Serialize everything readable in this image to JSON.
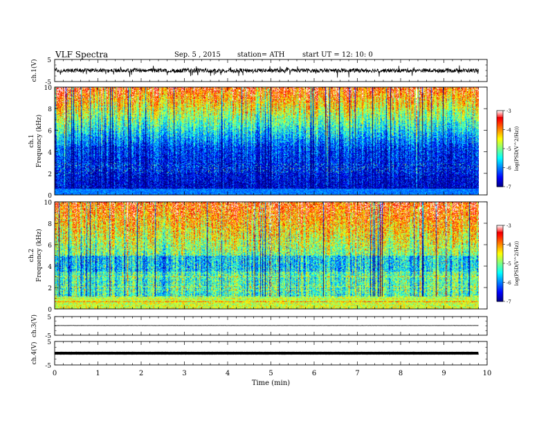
{
  "header": {
    "title": "VLF  Spectra",
    "date": "Sep. 5  , 2015",
    "station": "station= ATH",
    "start": "start  UT  =    12: 10: 0"
  },
  "chart_data": {
    "type": "heatmap",
    "title": "VLF  Spectra",
    "xlabel": "Time  (min)",
    "xlim": [
      0,
      10
    ],
    "x_ticks": [
      "0",
      "1",
      "2",
      "3",
      "4",
      "5",
      "6",
      "7",
      "8",
      "9",
      "10"
    ],
    "data_extent_min": 9.8,
    "panels": [
      {
        "name": "ch1-waveform",
        "type": "line",
        "ylabel": "ch.1(V)",
        "ylim": [
          -5,
          5
        ],
        "y_ticks": [
          "5",
          "-5"
        ],
        "baseline_v": 0,
        "amplitude_v": 1.5
      },
      {
        "name": "ch1-spectrogram",
        "type": "heatmap",
        "ylabel_top": "ch.1",
        "ylabel": "Frequency  (kHz)",
        "ylim": [
          0,
          10
        ],
        "y_ticks": [
          "0",
          "2",
          "4",
          "6",
          "8",
          "10"
        ],
        "colorbar": {
          "label": "log(PSD(V^2/Hz))",
          "range": [
            -7,
            -3
          ],
          "ticks": [
            "-3",
            "-4",
            "-5",
            "-6",
            "-7"
          ]
        }
      },
      {
        "name": "ch2-spectrogram",
        "type": "heatmap",
        "ylabel_top": "ch.2",
        "ylabel": "Frequency  (kHz)",
        "ylim": [
          0,
          10
        ],
        "y_ticks": [
          "0",
          "2",
          "4",
          "6",
          "8",
          "10"
        ],
        "colorbar": {
          "label": "log(PSD(V^2/Hz))",
          "range": [
            -7,
            -3
          ],
          "ticks": [
            "-3",
            "-4",
            "-5",
            "-6",
            "-7"
          ]
        }
      },
      {
        "name": "ch3-waveform",
        "type": "line",
        "ylabel": "ch.3(V)",
        "ylim": [
          -5,
          5
        ],
        "y_ticks": [
          "5",
          "-5"
        ],
        "baseline_v": 0.2,
        "amplitude_v": 0.1
      },
      {
        "name": "ch4-waveform",
        "type": "line",
        "ylabel": "ch.4(V)",
        "ylim": [
          -5,
          5
        ],
        "y_ticks": [
          "5",
          "-5"
        ],
        "baseline_v": 0,
        "amplitude_v": 0.05
      }
    ]
  }
}
